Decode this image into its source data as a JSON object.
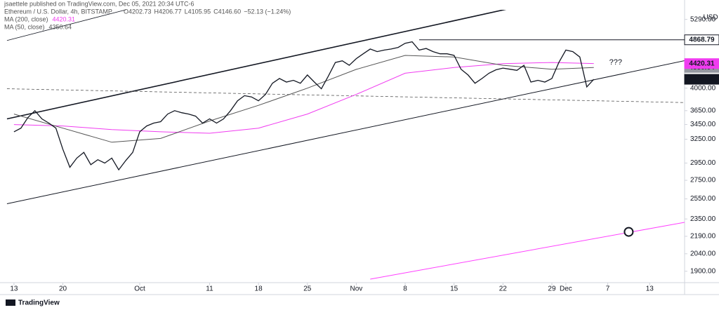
{
  "header": "jsaettele published on TradingView.com, Dec 05, 2021 20:34 UTC-6",
  "footer": "TradingView",
  "chart_data": {
    "type": "line",
    "ohlc": [
      "O4202.73",
      "H4206.77",
      "L4105.95",
      "C4146.60",
      "−52.13 (−1.24%)"
    ],
    "currency": "USD",
    "log_scale": true,
    "xlim": [
      "2021-09-11",
      "2021-12-18"
    ],
    "xticks": [
      {
        "value": "2021-09-13",
        "label": "13"
      },
      {
        "value": "2021-09-20",
        "label": "20"
      },
      {
        "value": "2021-10-01",
        "label": "Oct"
      },
      {
        "value": "2021-10-11",
        "label": "11"
      },
      {
        "value": "2021-10-18",
        "label": "18"
      },
      {
        "value": "2021-10-25",
        "label": "25"
      },
      {
        "value": "2021-11-01",
        "label": "Nov"
      },
      {
        "value": "2021-11-08",
        "label": "8"
      },
      {
        "value": "2021-11-15",
        "label": "15"
      },
      {
        "value": "2021-11-22",
        "label": "22"
      },
      {
        "value": "2021-11-29",
        "label": "29"
      },
      {
        "value": "2021-12-01",
        "label": "Dec"
      },
      {
        "value": "2021-12-07",
        "label": "7"
      },
      {
        "value": "2021-12-13",
        "label": "13"
      }
    ],
    "ylim": [
      1840,
      5500
    ],
    "yticks": [
      {
        "value": 5290,
        "label": "5290.00"
      },
      {
        "value": 4000,
        "label": "4000.00"
      },
      {
        "value": 3650,
        "label": "3650.00"
      },
      {
        "value": 3450,
        "label": "3450.00"
      },
      {
        "value": 3250,
        "label": "3250.00"
      },
      {
        "value": 2950,
        "label": "2950.00"
      },
      {
        "value": 2750,
        "label": "2750.00"
      },
      {
        "value": 2550,
        "label": "2550.00"
      },
      {
        "value": 2350,
        "label": "2350.00"
      },
      {
        "value": 2190,
        "label": "2190.00"
      },
      {
        "value": 2040,
        "label": "2040.00"
      },
      {
        "value": 1900,
        "label": "1900.00"
      }
    ],
    "price_labels": [
      {
        "value": 4350.64,
        "color": "#9598a1",
        "text_color": "#ffffff"
      },
      {
        "value": 4420.31,
        "color": "#f03cf0",
        "text_color": "#ffffff"
      },
      {
        "value": 4868.79,
        "color": "#ffffff",
        "text_color": "#131722"
      },
      {
        "value": 4146.6,
        "label": "4146.60",
        "color": "#131722",
        "text_color": "#ffffff"
      }
    ],
    "series": [
      {
        "name": "Ethereum / U.S. Dollar, 4h, BITSTAMP",
        "color": "#131722",
        "x": [
          "2021-09-13",
          "2021-09-14",
          "2021-09-15",
          "2021-09-16",
          "2021-09-17",
          "2021-09-18",
          "2021-09-19",
          "2021-09-20",
          "2021-09-21",
          "2021-09-22",
          "2021-09-23",
          "2021-09-24",
          "2021-09-25",
          "2021-09-26",
          "2021-09-27",
          "2021-09-28",
          "2021-09-29",
          "2021-09-30",
          "2021-10-01",
          "2021-10-02",
          "2021-10-03",
          "2021-10-04",
          "2021-10-05",
          "2021-10-06",
          "2021-10-07",
          "2021-10-08",
          "2021-10-09",
          "2021-10-10",
          "2021-10-11",
          "2021-10-12",
          "2021-10-13",
          "2021-10-14",
          "2021-10-15",
          "2021-10-16",
          "2021-10-17",
          "2021-10-18",
          "2021-10-19",
          "2021-10-20",
          "2021-10-21",
          "2021-10-22",
          "2021-10-23",
          "2021-10-24",
          "2021-10-25",
          "2021-10-26",
          "2021-10-27",
          "2021-10-28",
          "2021-10-29",
          "2021-10-30",
          "2021-10-31",
          "2021-11-01",
          "2021-11-02",
          "2021-11-03",
          "2021-11-04",
          "2021-11-05",
          "2021-11-06",
          "2021-11-07",
          "2021-11-08",
          "2021-11-09",
          "2021-11-10",
          "2021-11-11",
          "2021-11-12",
          "2021-11-13",
          "2021-11-14",
          "2021-11-15",
          "2021-11-16",
          "2021-11-17",
          "2021-11-18",
          "2021-11-19",
          "2021-11-20",
          "2021-11-21",
          "2021-11-22",
          "2021-11-23",
          "2021-11-24",
          "2021-11-25",
          "2021-11-26",
          "2021-11-27",
          "2021-11-28",
          "2021-11-29",
          "2021-11-30",
          "2021-12-01",
          "2021-12-02",
          "2021-12-03",
          "2021-12-04",
          "2021-12-05"
        ],
        "values": [
          3350,
          3400,
          3550,
          3650,
          3530,
          3470,
          3400,
          3120,
          2900,
          3010,
          3080,
          2930,
          2990,
          2950,
          3010,
          2870,
          2980,
          3080,
          3350,
          3430,
          3470,
          3490,
          3600,
          3650,
          3620,
          3600,
          3570,
          3470,
          3530,
          3470,
          3530,
          3650,
          3800,
          3880,
          3860,
          3800,
          3900,
          4080,
          4160,
          4100,
          4130,
          4080,
          4220,
          4100,
          3990,
          4200,
          4440,
          4470,
          4390,
          4510,
          4600,
          4690,
          4640,
          4670,
          4690,
          4720,
          4800,
          4830,
          4670,
          4700,
          4640,
          4600,
          4600,
          4570,
          4320,
          4220,
          4080,
          4160,
          4250,
          4310,
          4340,
          4320,
          4300,
          4390,
          4100,
          4130,
          4100,
          4160,
          4440,
          4670,
          4640,
          4540,
          4020,
          4146.6
        ]
      },
      {
        "name": "MA (200, close)",
        "color": "#f03cf0",
        "legend_value": 1,
        "x": [
          "2021-09-13",
          "2021-09-20",
          "2021-09-27",
          "2021-10-04",
          "2021-10-11",
          "2021-10-18",
          "2021-10-25",
          "2021-11-01",
          "2021-11-08",
          "2021-11-15",
          "2021-11-22",
          "2021-11-29",
          "2021-12-05"
        ],
        "values": [
          3450,
          3430,
          3380,
          3350,
          3330,
          3400,
          3600,
          3900,
          4250,
          4350,
          4420,
          4440,
          4420.31
        ]
      },
      {
        "name": "MA (50, close)",
        "color": "#555555",
        "legend_value": 0,
        "x": [
          "2021-09-13",
          "2021-09-20",
          "2021-09-27",
          "2021-10-04",
          "2021-10-11",
          "2021-10-18",
          "2021-10-25",
          "2021-11-01",
          "2021-11-08",
          "2021-11-15",
          "2021-11-22",
          "2021-11-29",
          "2021-12-05"
        ],
        "values": [
          3600,
          3400,
          3210,
          3260,
          3500,
          3730,
          4000,
          4317,
          4570,
          4540,
          4390,
          4320,
          4350.64
        ]
      }
    ],
    "trendlines": [
      {
        "x": [
          "2021-09-12",
          "2021-11-25"
        ],
        "y": [
          3530,
          5600
        ],
        "color": "#131722",
        "width": 1.6
      },
      {
        "x": [
          "2021-09-12",
          "2021-12-19"
        ],
        "y": [
          2500,
          4500
        ],
        "color": "#131722",
        "width": 1
      },
      {
        "x": [
          "2021-09-12",
          "2021-09-29"
        ],
        "y": [
          4855,
          5500
        ],
        "color": "#131722",
        "width": 0.8
      },
      {
        "x": [
          "2021-11-10",
          "2021-12-19"
        ],
        "y": [
          4868.79,
          4868.79
        ],
        "color": "#131722",
        "width": 1
      },
      {
        "x": [
          "2021-09-12",
          "2021-12-19"
        ],
        "y": [
          3990,
          3770
        ],
        "color": "#555555",
        "width": 0.8,
        "dashed": true
      },
      {
        "x": [
          "2021-11-03",
          "2021-12-19"
        ],
        "y": [
          1840,
          2330
        ],
        "color": "#ff40ff",
        "width": 1
      }
    ],
    "markers": [
      {
        "x": "2021-12-10",
        "y": 2230
      }
    ],
    "annotations": [
      {
        "text": "???",
        "x": "2021-12-05",
        "y": 4440,
        "color": "#f03cf0"
      }
    ]
  }
}
